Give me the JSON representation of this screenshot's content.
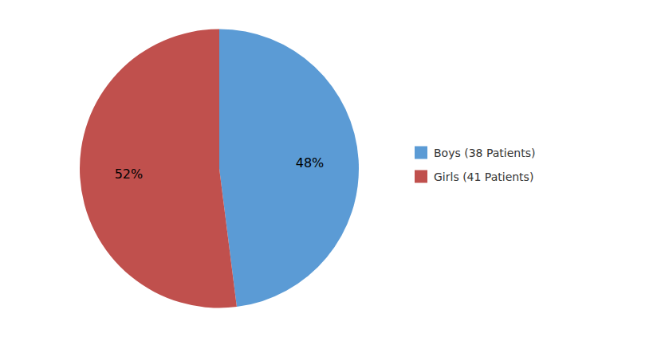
{
  "chart_data": {
    "type": "pie",
    "categories": [
      "Boys (38 Patients)",
      "Girls (41 Patients)"
    ],
    "values": [
      48,
      52
    ],
    "value_labels": [
      "48%",
      "52%"
    ],
    "colors": [
      "#5B9BD5",
      "#C0504D"
    ],
    "data_labels": true,
    "legend": "right"
  }
}
